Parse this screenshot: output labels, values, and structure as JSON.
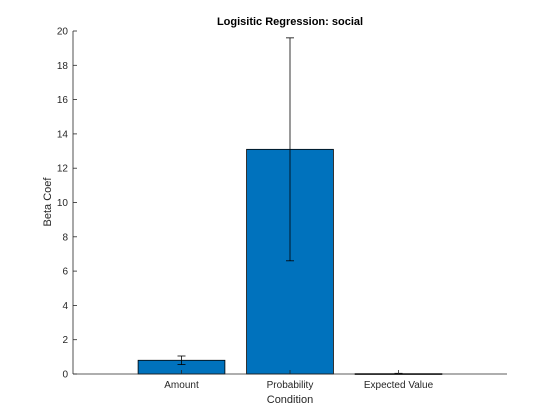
{
  "chart_data": {
    "type": "bar",
    "title": "Logisitic Regression: social",
    "xlabel": "Condition",
    "ylabel": "Beta Coef",
    "categories": [
      "Amount",
      "Probability",
      "Expected Value"
    ],
    "values": [
      0.8,
      13.1,
      0.02
    ],
    "error": [
      0.25,
      6.5,
      0.02
    ],
    "ylim": [
      0,
      20
    ],
    "yticks": [
      "0",
      "2",
      "4",
      "6",
      "8",
      "10",
      "12",
      "14",
      "16",
      "18",
      "20"
    ],
    "bar_color": "#0072BD",
    "grid": false
  }
}
